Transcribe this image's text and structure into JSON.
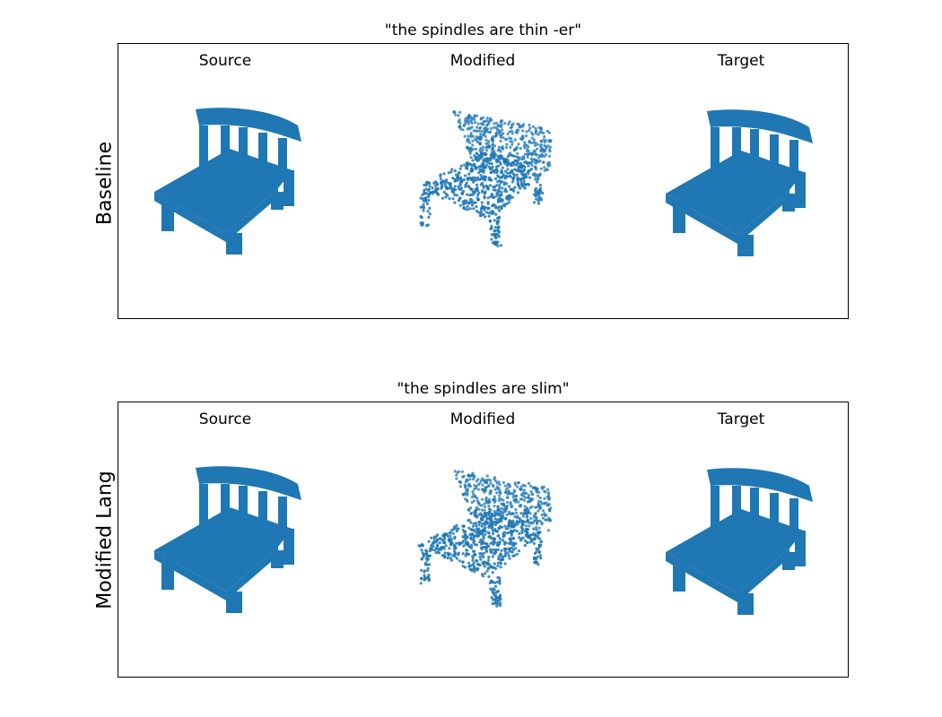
{
  "panels": [
    {
      "title": "\"the spindles are thin -er\"",
      "row_label": "Baseline",
      "columns": [
        "Source",
        "Modified",
        "Target"
      ]
    },
    {
      "title": "\"the spindles are slim\"",
      "row_label": "Modified Lang",
      "columns": [
        "Source",
        "Modified",
        "Target"
      ]
    }
  ],
  "colors": {
    "points": "#1f77b4",
    "frame": "#000000"
  }
}
